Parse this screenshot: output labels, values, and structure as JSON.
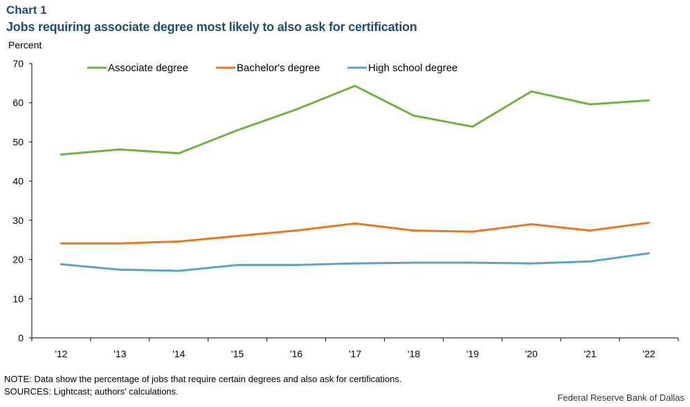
{
  "header": {
    "chart_label": "Chart 1",
    "title": "Jobs requiring associate degree most likely to also ask for certification",
    "y_unit": "Percent"
  },
  "footer": {
    "note": "NOTE: Data show the percentage of jobs that require certain degrees and also ask for certifications.",
    "sources": "SOURCES: Lightcast; authors' calculations.",
    "credit": "Federal Reserve Bank of Dallas"
  },
  "chart_data": {
    "type": "line",
    "title": "Jobs requiring associate degree most likely to also ask for certification",
    "xlabel": "",
    "ylabel": "Percent",
    "categories": [
      "'12",
      "'13",
      "'14",
      "'15",
      "'16",
      "'17",
      "'18",
      "'19",
      "'20",
      "'21",
      "'22"
    ],
    "ylim": [
      0,
      70
    ],
    "yticks": [
      0,
      10,
      20,
      30,
      40,
      50,
      60,
      70
    ],
    "grid": false,
    "legend_position": "top",
    "series": [
      {
        "name": "Associate degree",
        "color": "#6db33f",
        "values": [
          46.8,
          48.1,
          47.1,
          53.0,
          58.3,
          64.3,
          56.7,
          53.9,
          62.9,
          59.6,
          60.6
        ]
      },
      {
        "name": "Bachelor's degree",
        "color": "#e87722",
        "values": [
          24.1,
          24.1,
          24.6,
          26.0,
          27.4,
          29.2,
          27.4,
          27.1,
          29.0,
          27.4,
          29.4
        ]
      },
      {
        "name": "High school degree",
        "color": "#5ba3c9",
        "values": [
          18.8,
          17.4,
          17.1,
          18.6,
          18.6,
          19.0,
          19.2,
          19.2,
          19.0,
          19.5,
          21.6
        ]
      }
    ]
  }
}
